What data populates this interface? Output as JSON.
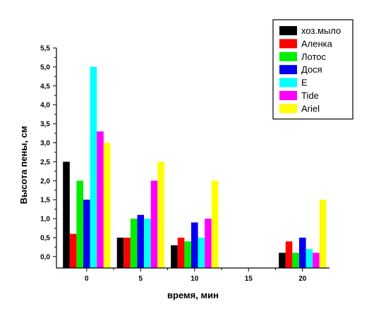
{
  "chart_data": {
    "type": "bar",
    "title": "",
    "xlabel": "время, мин",
    "ylabel": "Высота пены, см",
    "x": [
      0,
      5,
      10,
      15,
      20
    ],
    "xlim": [
      -2.8,
      22.5
    ],
    "ylim": [
      -0.3,
      5.5
    ],
    "xticks": [
      "0",
      "5",
      "10",
      "15",
      "20"
    ],
    "yticks": [
      "0,0",
      "0,5",
      "1,0",
      "1,5",
      "2,0",
      "2,5",
      "3,0",
      "3,5",
      "4,0",
      "4,5",
      "5,0",
      "5,5"
    ],
    "ytick_values": [
      0,
      0.5,
      1.0,
      1.5,
      2.0,
      2.5,
      3.0,
      3.5,
      4.0,
      4.5,
      5.0,
      5.5
    ],
    "legend_position": "top-right",
    "grid": false,
    "series": [
      {
        "name": "хоз.мыло",
        "color": "#000000",
        "values": [
          2.5,
          0.5,
          0.3,
          null,
          0.1
        ]
      },
      {
        "name": "Аленка",
        "color": "#ff0000",
        "values": [
          0.6,
          0.5,
          0.5,
          null,
          0.4
        ]
      },
      {
        "name": "Лотос",
        "color": "#00ee00",
        "values": [
          2.0,
          1.0,
          0.4,
          null,
          0.1
        ]
      },
      {
        "name": "Дося",
        "color": "#0000ee",
        "values": [
          1.5,
          1.1,
          0.9,
          null,
          0.5
        ]
      },
      {
        "name": "E",
        "color": "#00ffff",
        "values": [
          5.0,
          1.0,
          0.5,
          null,
          0.2
        ]
      },
      {
        "name": "Tide",
        "color": "#ff00ff",
        "values": [
          3.3,
          2.0,
          1.0,
          null,
          0.1
        ]
      },
      {
        "name": "Ariel",
        "color": "#ffff00",
        "values": [
          3.0,
          2.5,
          2.0,
          null,
          1.5
        ]
      }
    ]
  }
}
